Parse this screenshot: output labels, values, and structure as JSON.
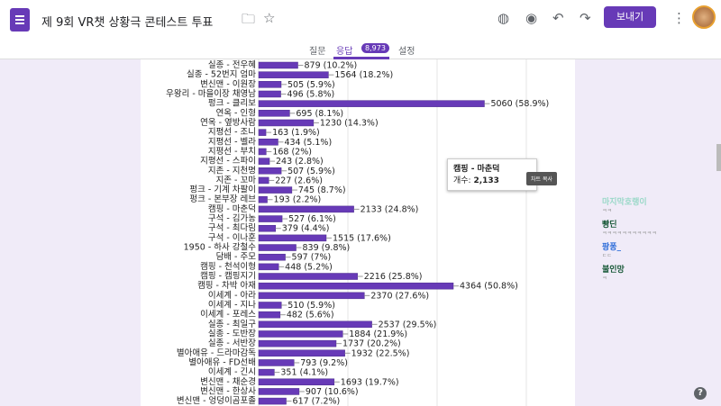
{
  "header": {
    "title": "제 9회 VR챗 상황극 콘테스트 투표",
    "send_label": "보내기"
  },
  "tabs": {
    "questions": "질문",
    "responses": "응답",
    "response_count": "8,973",
    "settings": "설정"
  },
  "tooltip": {
    "title": "캠핑 - 마춘덕",
    "count_label": "개수:",
    "count": "2,133"
  },
  "copy_chart": "차트 복사",
  "chat": [
    {
      "name": "마지막호랭이",
      "text": "ㅋㅋ",
      "color": "#9ad8c8"
    },
    {
      "name": "빵딘",
      "text": "ㅋㅋㅋㅋㅋㅋㅋㅋㅋㅋㅋ",
      "color": "#1a5a3a"
    },
    {
      "name": "팡퐁_",
      "text": "ㄷㄷ",
      "color": "#2a6ad8"
    },
    {
      "name": "불인망",
      "text": "ㅋ",
      "color": "#1a5a3a"
    }
  ],
  "help": "?",
  "chart_data": {
    "type": "bar",
    "orientation": "horizontal",
    "xlim": [
      0,
      6000
    ],
    "grid_step": 2000,
    "bar_color": "#673ab7",
    "categories": [
      "실종 - 전우혜",
      "실종 - 52번지 엄마",
      "변신맨 - 이원장",
      "우왕리 - 마을이장 채영남",
      "펑크 - 클리보",
      "연옥 - 인형",
      "연옥 - 옆방사람",
      "지평선 - 조니",
      "지평선 - 벨라",
      "지평선 - 부치",
      "지평선 - 스파이",
      "지존 - 지천명",
      "지존 - 꼬마",
      "펑크 - 기계 차팔이",
      "펑크 - 본부장 레브",
      "캠핑 - 마춘덕",
      "구석 - 김가농",
      "구석 - 최다림",
      "구석 - 이나훈",
      "1950 - 하사 강철수",
      "담배 - 주모",
      "캠핑 - 천석이형",
      "캠핑 - 캠핑지기",
      "캠핑 - 차박 아재",
      "이세계 - 아라",
      "이세계 - 지나",
      "이세계 - 포레스",
      "실종 - 최일구",
      "실종 - 도반장",
      "실종 - 서반장",
      "별아애유 - 드라마감독",
      "별아애유 - FD선배",
      "이세계 - 긴시",
      "변신맨 - 채순경",
      "변신맨 - 한상사",
      "변신맨 - 엉덩이곰포졸"
    ],
    "values": [
      879,
      1564,
      505,
      496,
      5060,
      695,
      1230,
      163,
      434,
      168,
      243,
      507,
      227,
      745,
      193,
      2133,
      527,
      379,
      1515,
      839,
      597,
      448,
      2216,
      4364,
      2370,
      510,
      482,
      2537,
      1884,
      1737,
      1932,
      793,
      351,
      1693,
      907,
      617
    ],
    "percents": [
      "10.2%",
      "18.2%",
      "5.9%",
      "5.8%",
      "58.9%",
      "8.1%",
      "14.3%",
      "1.9%",
      "5.1%",
      "2%",
      "2.8%",
      "5.9%",
      "2.6%",
      "8.7%",
      "2.2%",
      "24.8%",
      "6.1%",
      "4.4%",
      "17.6%",
      "9.8%",
      "7%",
      "5.2%",
      "25.8%",
      "50.8%",
      "27.6%",
      "5.9%",
      "5.6%",
      "29.5%",
      "21.9%",
      "20.2%",
      "22.5%",
      "9.2%",
      "4.1%",
      "19.7%",
      "10.6%",
      "7.2%"
    ]
  }
}
